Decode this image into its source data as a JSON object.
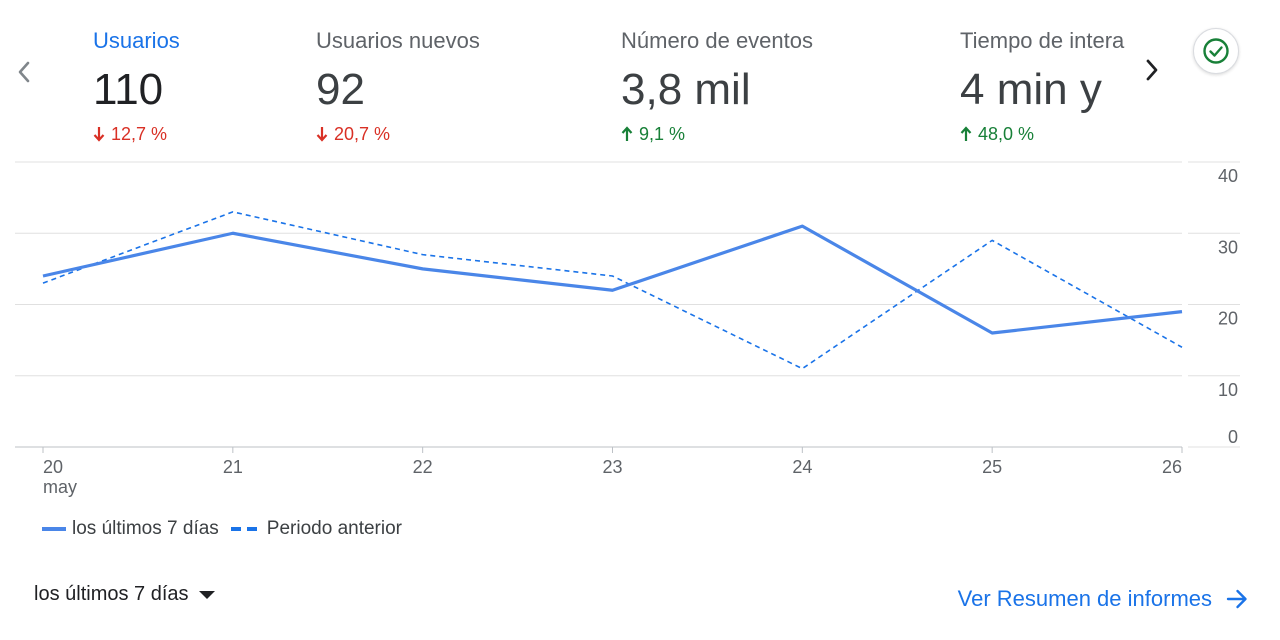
{
  "metrics": [
    {
      "label": "Usuarios",
      "value": "110",
      "change": "12,7 %",
      "direction": "down",
      "active": true
    },
    {
      "label": "Usuarios nuevos",
      "value": "92",
      "change": "20,7 %",
      "direction": "down",
      "active": false
    },
    {
      "label": "Número de eventos",
      "value": "3,8 mil",
      "change": "9,1 %",
      "direction": "up",
      "active": false
    },
    {
      "label": "Tiempo de interacción medio",
      "value": "4 min y",
      "change": "48,0 %",
      "direction": "up",
      "active": false
    }
  ],
  "icons": {
    "prev": "chevron-left-icon",
    "next": "chevron-right-icon",
    "status": "check-circle-icon",
    "dropdown": "arrow-drop-down-icon",
    "link": "arrow-forward-icon"
  },
  "colors": {
    "accent": "#1a73e8",
    "series": "#4a86e8",
    "negative": "#d93025",
    "positive": "#188038",
    "status": "#188038"
  },
  "chart_data": {
    "type": "line",
    "categories": [
      "20",
      "21",
      "22",
      "23",
      "24",
      "25",
      "26"
    ],
    "x_sublabel": "may",
    "yticks": [
      0,
      10,
      20,
      30,
      40
    ],
    "ylim": [
      0,
      40
    ],
    "grid": true,
    "legend_position": "bottom-left",
    "series": [
      {
        "name": "los últimos 7 días",
        "style": "solid",
        "values": [
          24,
          30,
          25,
          22,
          31,
          16,
          19
        ]
      },
      {
        "name": "Periodo anterior",
        "style": "dashed",
        "values": [
          23,
          33,
          27,
          24,
          11,
          29,
          14
        ]
      }
    ]
  },
  "footer": {
    "range_label": "los últimos 7 días",
    "report_link": "Ver Resumen de informes"
  }
}
